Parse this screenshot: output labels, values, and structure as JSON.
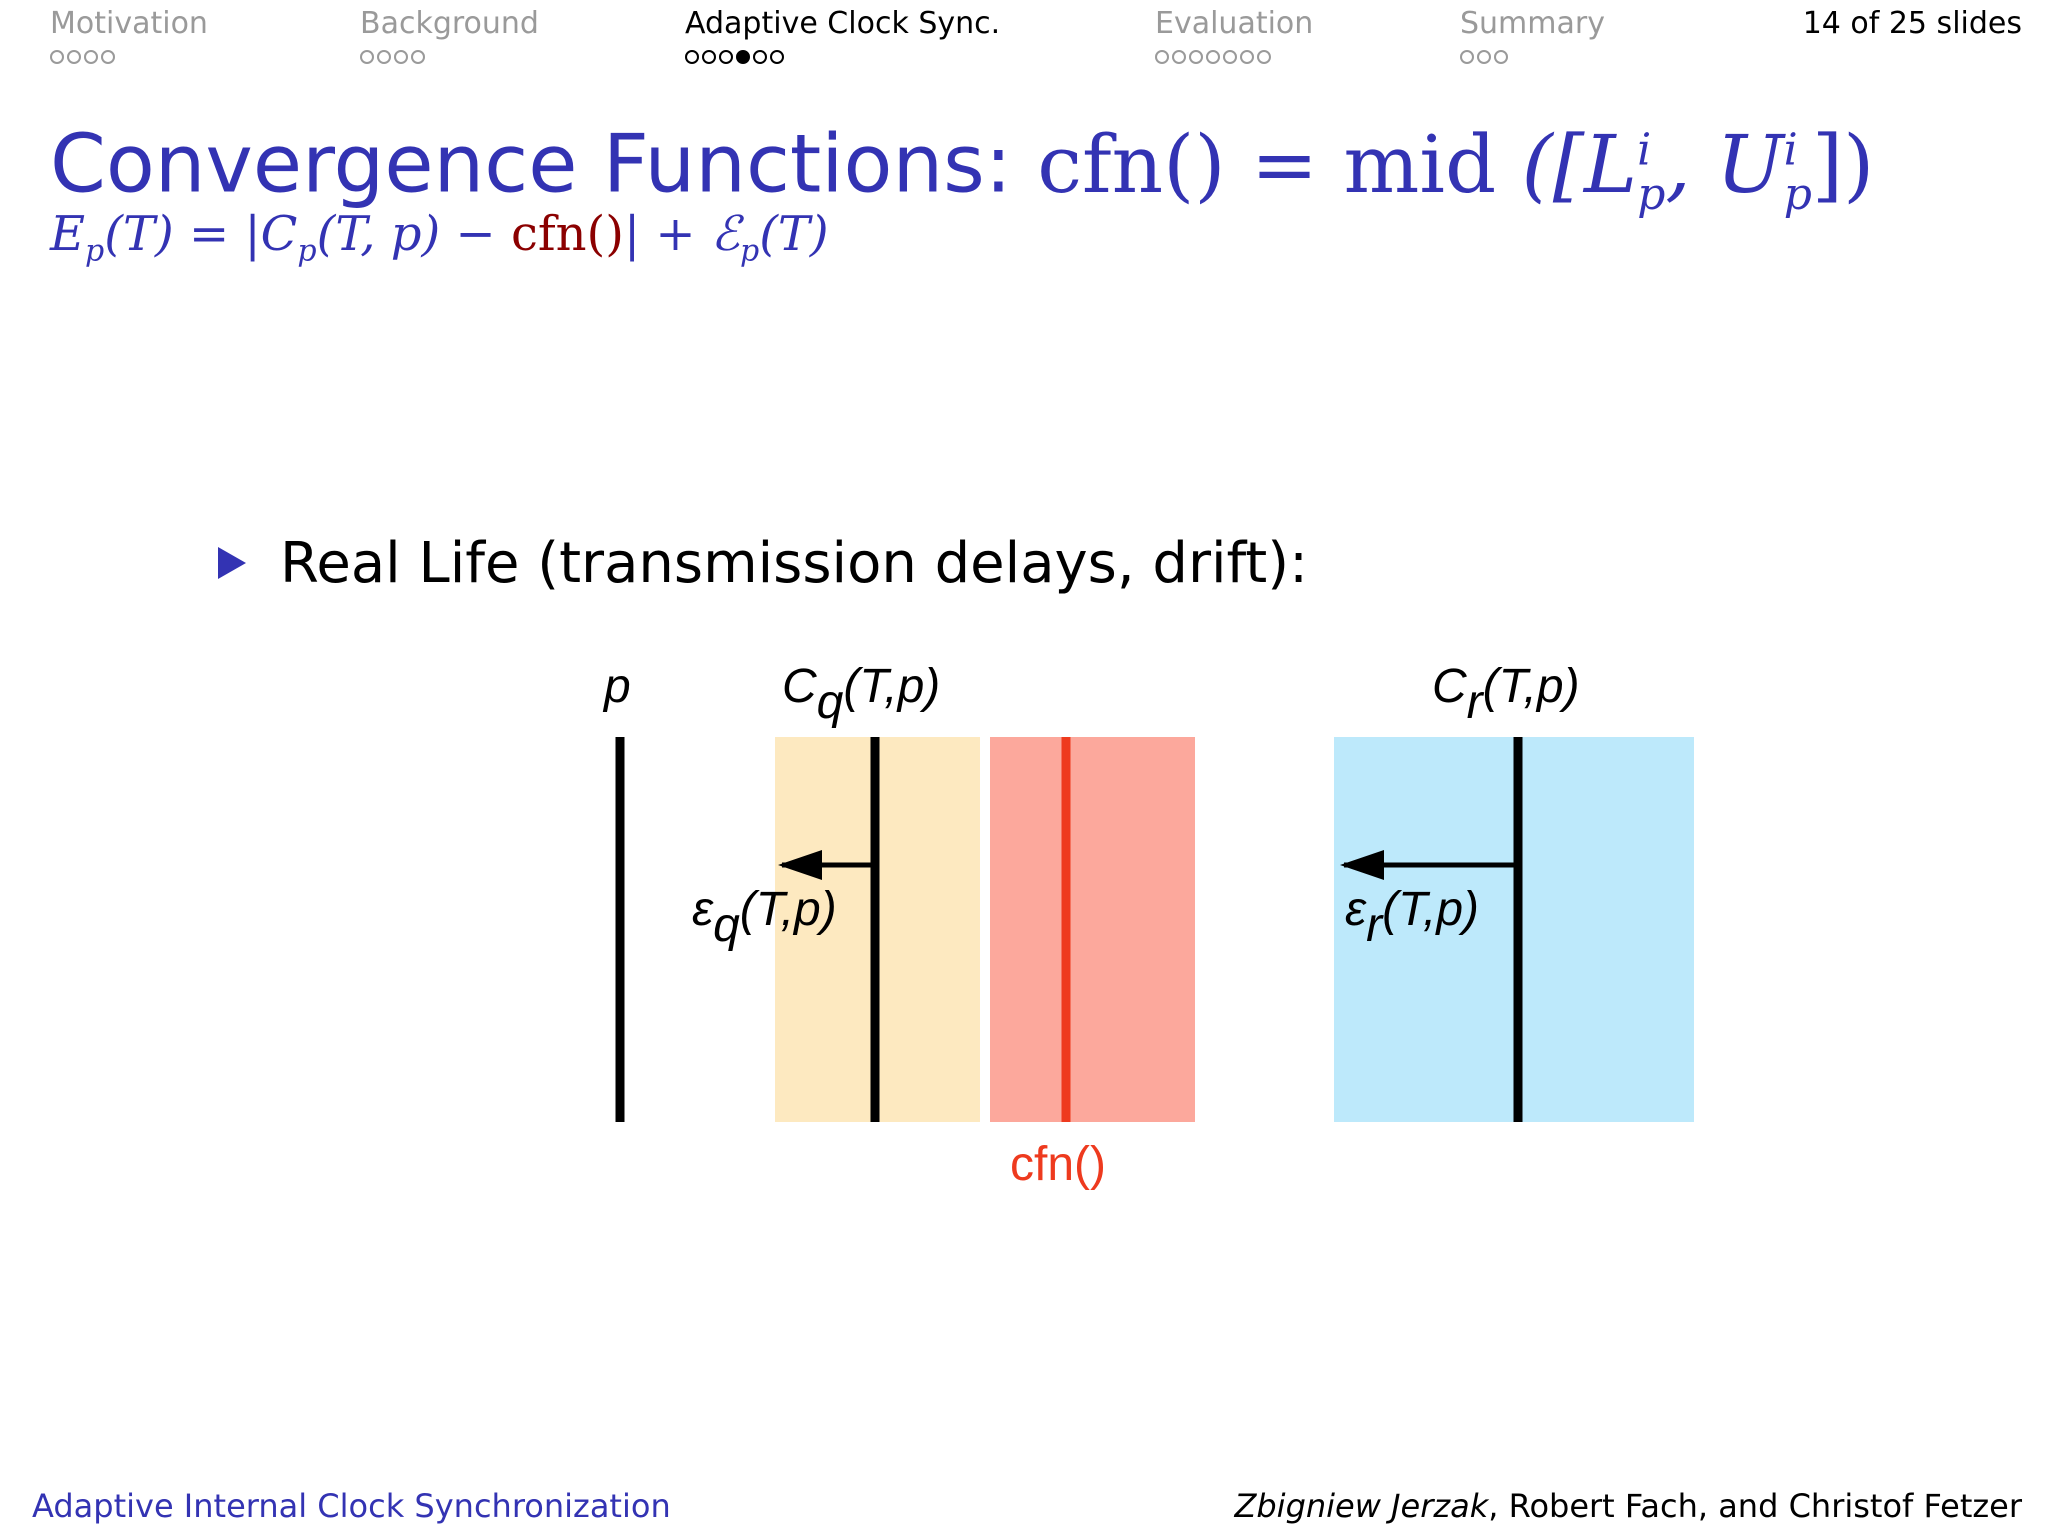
{
  "nav": {
    "sections": [
      {
        "label": "Motivation",
        "dots": 4,
        "filled": -1,
        "active": false
      },
      {
        "label": "Background",
        "dots": 4,
        "filled": -1,
        "active": false
      },
      {
        "label": "Adaptive Clock Sync.",
        "dots": 6,
        "filled": 3,
        "active": true
      },
      {
        "label": "Evaluation",
        "dots": 7,
        "filled": -1,
        "active": false
      },
      {
        "label": "Summary",
        "dots": 3,
        "filled": -1,
        "active": false
      }
    ],
    "slide_counter": "14 of 25 slides"
  },
  "title": {
    "text": "Convergence Functions:",
    "math_fn": "cfn()",
    "math_eq": "=",
    "math_mid": "mid",
    "math_args": "([L",
    "math_sup_i": "i",
    "math_sub_p": "p",
    "math_comma": ", U",
    "math_close": "])"
  },
  "formula": {
    "lhs": "E",
    "lhs_sub": "p",
    "lhs_args": "(T) = |C",
    "c_sub": "p",
    "c_args": "(T, p) − ",
    "cfn": "cfn()",
    "rest": "| + ℰ",
    "rest_sub": "p",
    "rest_args": "(T)"
  },
  "bullet": {
    "text": "Real Life (transmission delays, drift):"
  },
  "diagram": {
    "label_p": "p",
    "label_cq_main": "C",
    "label_cq_sub": "q",
    "label_cq_args": "(T,p)",
    "label_cr_main": "C",
    "label_cr_sub": "r",
    "label_cr_args": "(T,p)",
    "label_eq_main": "ε",
    "label_eq_sub": "q",
    "label_eq_args": "(T,p)",
    "label_er_main": "ε",
    "label_er_sub": "r",
    "label_er_args": "(T,p)",
    "label_cfn": "cfn()",
    "colors": {
      "q_region": "#fde9c0",
      "cfn_region": "#fca89c",
      "r_region": "#bde9fb",
      "cfn_line": "#ee3a1e",
      "line": "#000000"
    }
  },
  "footer": {
    "left": "Adaptive Internal Clock Synchronization",
    "first_author": "Zbigniew Jerzak",
    "other_authors": ", Robert Fach, and Christof Fetzer"
  }
}
